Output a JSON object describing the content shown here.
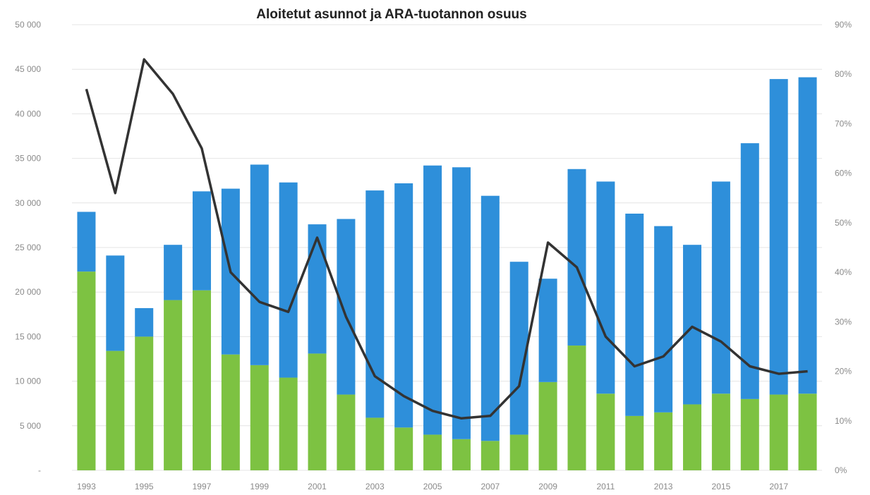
{
  "chart_data": {
    "type": "bar",
    "title": "Aloitetut asunnot ja ARA-tuotannon  osuus",
    "categories": [
      "1993",
      "1994",
      "1995",
      "1996",
      "1997",
      "1998",
      "1999",
      "2000",
      "2001",
      "2002",
      "2003",
      "2004",
      "2005",
      "2006",
      "2007",
      "2008",
      "2009",
      "2010",
      "2011",
      "2012",
      "2013",
      "2014",
      "2015",
      "2016",
      "2017",
      "2018"
    ],
    "x_tick_labels": [
      "1993",
      "",
      "1995",
      "",
      "1997",
      "",
      "1999",
      "",
      "2001",
      "",
      "2003",
      "",
      "2005",
      "",
      "2007",
      "",
      "2009",
      "",
      "2011",
      "",
      "2013",
      "",
      "2015",
      "",
      "2017",
      ""
    ],
    "y_left_tick_labels": [
      "-",
      "5 000",
      "10 000",
      "15 000",
      "20 000",
      "25 000",
      "30 000",
      "35 000",
      "40 000",
      "45 000",
      "50 000"
    ],
    "y_right_tick_labels": [
      "0%",
      "10%",
      "20%",
      "30%",
      "40%",
      "50%",
      "60%",
      "70%",
      "80%",
      "90%"
    ],
    "ylim": [
      0,
      50000
    ],
    "y2lim": [
      0,
      90
    ],
    "stacked": true,
    "series": [
      {
        "type": "bar",
        "color": "#7dc242",
        "values": [
          22300,
          13400,
          15000,
          19100,
          20200,
          13000,
          11800,
          10400,
          13100,
          8500,
          5900,
          4800,
          4000,
          3500,
          3300,
          4000,
          9900,
          14000,
          8600,
          6100,
          6500,
          7400,
          8600,
          8000,
          8500,
          8600
        ]
      },
      {
        "type": "bar",
        "color": "#2e8fda",
        "values": [
          6700,
          10700,
          3200,
          6200,
          11100,
          18600,
          22500,
          21900,
          14500,
          19700,
          25500,
          27400,
          30200,
          30500,
          27500,
          19400,
          11600,
          19800,
          23800,
          22700,
          20900,
          17900,
          23800,
          28700,
          35400,
          35500
        ]
      },
      {
        "type": "line",
        "color": "#333333",
        "axis": "right",
        "values": [
          77,
          56,
          83,
          76,
          65,
          40,
          34,
          32,
          47,
          31,
          19,
          15,
          12,
          10.5,
          11,
          17,
          46,
          41,
          27,
          21,
          23,
          29,
          26,
          21,
          19.5,
          20
        ]
      }
    ],
    "grid": true
  }
}
